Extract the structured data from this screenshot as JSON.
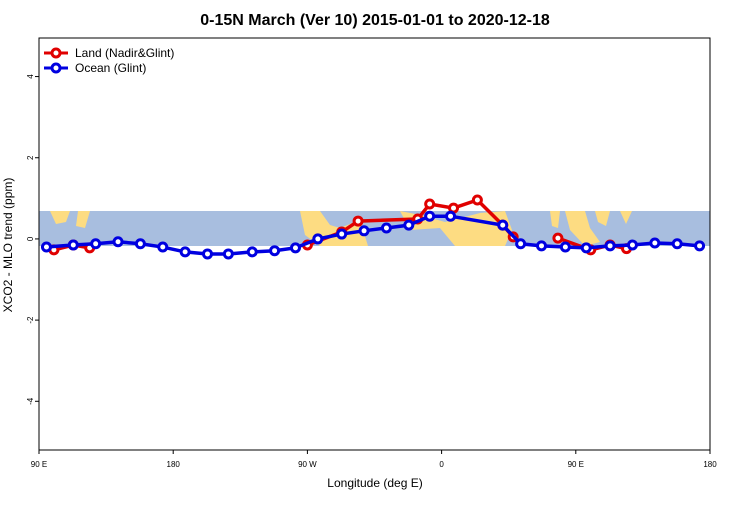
{
  "chart_data": {
    "type": "line",
    "title": "0-15N March (Ver 10)   2015-01-01 to 2020-12-18",
    "xlabel": "Longitude (deg E)",
    "ylabel": "XCO2 - MLO trend (ppm)",
    "xlim": [
      90,
      540
    ],
    "xticks": [
      {
        "value": 90,
        "label": "90 E"
      },
      {
        "value": 180,
        "label": "180"
      },
      {
        "value": 270,
        "label": "90 W"
      },
      {
        "value": 360,
        "label": "0"
      },
      {
        "value": 450,
        "label": "90 E"
      },
      {
        "value": 540,
        "label": "180"
      }
    ],
    "ylim": [
      -5.2,
      4.95
    ],
    "yticks": [
      -4,
      -2,
      0,
      2,
      4
    ],
    "legend": "top-left",
    "series": [
      {
        "name": "Land (Nadir&Glint)",
        "color": "#e00000",
        "x": [
          100,
          113,
          124,
          null,
          270,
          293,
          304,
          344,
          352,
          368,
          384,
          401,
          408,
          null,
          438,
          460,
          473,
          484
        ],
        "values": [
          -0.27,
          -0.15,
          -0.22,
          null,
          -0.15,
          0.17,
          0.44,
          0.49,
          0.86,
          0.76,
          0.96,
          0.34,
          0.05,
          null,
          0.02,
          -0.27,
          -0.15,
          -0.24
        ]
      },
      {
        "name": "Ocean (Glint)",
        "color": "#0000e0",
        "x": [
          95,
          113,
          128,
          143,
          158,
          173,
          188,
          203,
          217,
          233,
          248,
          262,
          277,
          293,
          308,
          323,
          338,
          352,
          366,
          401,
          413,
          427,
          443,
          457,
          473,
          488,
          503,
          518,
          533
        ],
        "values": [
          -0.2,
          -0.15,
          -0.12,
          -0.07,
          -0.12,
          -0.2,
          -0.32,
          -0.37,
          -0.37,
          -0.32,
          -0.29,
          -0.22,
          0.0,
          0.12,
          0.2,
          0.27,
          0.34,
          0.56,
          0.56,
          0.34,
          -0.12,
          -0.17,
          -0.2,
          -0.22,
          -0.17,
          -0.15,
          -0.1,
          -0.12,
          -0.17
        ]
      }
    ]
  }
}
